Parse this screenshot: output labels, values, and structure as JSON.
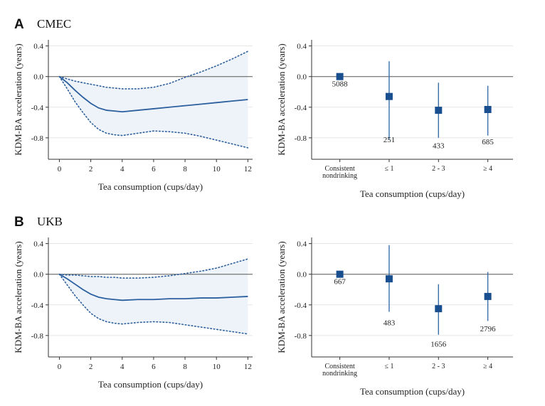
{
  "rows": [
    {
      "letter": "A",
      "cohort": "CMEC"
    },
    {
      "letter": "B",
      "cohort": "UKB"
    }
  ],
  "colors": {
    "line": "#2c5f9e",
    "band": "#eef3fa",
    "marker": "#1a4f8f",
    "errorbar": "#3a6fad",
    "zero_line": "#555555",
    "grid": "#dddddd"
  },
  "chart_data": [
    {
      "id": "A-left",
      "type": "line",
      "title": "CMEC",
      "xlabel": "Tea consumption (cups/day)",
      "ylabel": "KDM-BA acceleration (years)",
      "xlim": [
        -0.7,
        12.3
      ],
      "ylim": [
        -1.08,
        0.48
      ],
      "xticks": [
        0,
        2,
        4,
        6,
        8,
        10,
        12
      ],
      "yticks": [
        0.4,
        0.0,
        -0.4,
        -0.8
      ],
      "ytick_labels": [
        "0.4",
        "0.0",
        "-0.4",
        "-0.8"
      ],
      "grid": "horizontal",
      "reference_line": 0.0,
      "x": [
        0,
        0.5,
        1,
        1.5,
        2,
        2.5,
        3,
        3.5,
        4,
        5,
        6,
        7,
        8,
        9,
        10,
        11,
        12
      ],
      "estimate": [
        0,
        -0.08,
        -0.18,
        -0.27,
        -0.35,
        -0.41,
        -0.44,
        -0.45,
        -0.46,
        -0.44,
        -0.42,
        -0.4,
        -0.38,
        -0.36,
        -0.34,
        -0.32,
        -0.3
      ],
      "upper": [
        0,
        -0.03,
        -0.06,
        -0.08,
        -0.1,
        -0.12,
        -0.14,
        -0.15,
        -0.16,
        -0.16,
        -0.14,
        -0.09,
        -0.01,
        0.06,
        0.14,
        0.23,
        0.33
      ],
      "lower": [
        0,
        -0.16,
        -0.33,
        -0.47,
        -0.6,
        -0.69,
        -0.74,
        -0.76,
        -0.77,
        -0.74,
        -0.71,
        -0.72,
        -0.74,
        -0.78,
        -0.83,
        -0.88,
        -0.93
      ]
    },
    {
      "id": "A-right",
      "type": "scatter",
      "xlabel": "Tea consumption (cups/day)",
      "ylabel": "KDM-BA acceleration (years)",
      "ylim": [
        -1.08,
        0.48
      ],
      "yticks": [
        0.4,
        0.0,
        -0.4,
        -0.8
      ],
      "ytick_labels": [
        "0.4",
        "0.0",
        "-0.4",
        "-0.8"
      ],
      "grid": "horizontal",
      "reference_line": 0.0,
      "categories": [
        [
          "Consistent",
          "nondrinking"
        ],
        [
          "≤ 1"
        ],
        [
          "2 - 3"
        ],
        [
          "≥ 4"
        ]
      ],
      "values": [
        0.0,
        -0.26,
        -0.44,
        -0.43
      ],
      "ci_low": [
        0.0,
        -0.82,
        -0.8,
        -0.77
      ],
      "ci_high": [
        0.0,
        0.2,
        -0.08,
        -0.12
      ],
      "n": [
        "5088",
        "251",
        "433",
        "685"
      ],
      "n_y": [
        -0.09,
        -0.82,
        -0.9,
        -0.85
      ]
    },
    {
      "id": "B-left",
      "type": "line",
      "title": "UKB",
      "xlabel": "Tea consumption (cups/day)",
      "ylabel": "KDM-BA acceleration (years)",
      "xlim": [
        -0.7,
        12.3
      ],
      "ylim": [
        -1.08,
        0.48
      ],
      "xticks": [
        0,
        2,
        4,
        6,
        8,
        10,
        12
      ],
      "yticks": [
        0.4,
        0.0,
        -0.4,
        -0.8
      ],
      "ytick_labels": [
        "0.4",
        "0.0",
        "-0.4",
        "-0.8"
      ],
      "grid": "horizontal",
      "reference_line": 0.0,
      "x": [
        0,
        0.5,
        1,
        1.5,
        2,
        2.5,
        3,
        3.5,
        4,
        5,
        6,
        7,
        8,
        9,
        10,
        11,
        12
      ],
      "estimate": [
        0,
        -0.06,
        -0.13,
        -0.2,
        -0.26,
        -0.3,
        -0.32,
        -0.33,
        -0.34,
        -0.33,
        -0.33,
        -0.32,
        -0.32,
        -0.31,
        -0.31,
        -0.3,
        -0.29
      ],
      "upper": [
        0,
        -0.01,
        -0.01,
        -0.02,
        -0.03,
        -0.03,
        -0.04,
        -0.04,
        -0.05,
        -0.05,
        -0.04,
        -0.02,
        0.01,
        0.04,
        0.08,
        0.14,
        0.2
      ],
      "lower": [
        0,
        -0.14,
        -0.28,
        -0.4,
        -0.51,
        -0.58,
        -0.62,
        -0.64,
        -0.65,
        -0.63,
        -0.62,
        -0.63,
        -0.66,
        -0.69,
        -0.72,
        -0.75,
        -0.78
      ]
    },
    {
      "id": "B-right",
      "type": "scatter",
      "xlabel": "Tea consumption (cups/day)",
      "ylabel": "KDM-BA acceleration (years)",
      "ylim": [
        -1.08,
        0.48
      ],
      "yticks": [
        0.4,
        0.0,
        -0.4,
        -0.8
      ],
      "ytick_labels": [
        "0.4",
        "0.0",
        "-0.4",
        "-0.8"
      ],
      "grid": "horizontal",
      "reference_line": 0.0,
      "categories": [
        [
          "Consistent",
          "nondrinking"
        ],
        [
          "≤ 1"
        ],
        [
          "2 - 3"
        ],
        [
          "≥ 4"
        ]
      ],
      "values": [
        0.0,
        -0.06,
        -0.45,
        -0.29
      ],
      "ci_low": [
        0.0,
        -0.49,
        -0.79,
        -0.61
      ],
      "ci_high": [
        0.0,
        0.38,
        -0.13,
        0.03
      ],
      "n": [
        "667",
        "483",
        "1656",
        "2796"
      ],
      "n_y": [
        -0.09,
        -0.63,
        -0.91,
        -0.71
      ]
    }
  ]
}
